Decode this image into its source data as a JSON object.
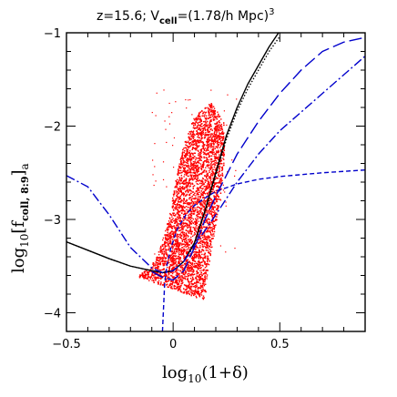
{
  "chart_data": {
    "type": "scatter",
    "title": {
      "z_part": "z=15.6; V",
      "sub": "cell",
      "eq": "=(1.78/h Mpc)",
      "sup": "3"
    },
    "xlabel": {
      "pre": "log",
      "sub": "10",
      "post": "(1+δ)"
    },
    "ylabel": {
      "pre": "log",
      "sub1": "10",
      "mid": "[f",
      "sub2": "coll, 8:9",
      "post": "]",
      "sub3": "a"
    },
    "xlim": [
      -0.5,
      0.9
    ],
    "ylim": [
      -4.2,
      -1.0
    ],
    "xticks": [
      -0.5,
      0,
      0.5
    ],
    "xtick_labels": [
      "−0.5",
      "0",
      "0.5"
    ],
    "yticks": [
      -4,
      -3,
      -2,
      -1
    ],
    "ytick_labels": [
      "−4",
      "−3",
      "−2",
      "−1"
    ],
    "grid": false,
    "colors": {
      "scatter": "#ff0000",
      "black_curves": "#000000",
      "blue_curves": "#0000cc"
    },
    "scatter_cloud": {
      "color": "#ff0000",
      "region_outline": [
        [
          -0.16,
          -3.6
        ],
        [
          -0.1,
          -3.5
        ],
        [
          -0.06,
          -3.3
        ],
        [
          -0.02,
          -3.0
        ],
        [
          0.01,
          -2.6
        ],
        [
          0.05,
          -2.2
        ],
        [
          0.1,
          -1.9
        ],
        [
          0.18,
          -1.75
        ],
        [
          0.24,
          -1.95
        ],
        [
          0.24,
          -2.4
        ],
        [
          0.22,
          -2.8
        ],
        [
          0.19,
          -3.2
        ],
        [
          0.16,
          -3.6
        ],
        [
          0.15,
          -3.87
        ],
        [
          0.0,
          -3.75
        ],
        [
          -0.16,
          -3.62
        ]
      ]
    },
    "series": [
      {
        "style": "solid",
        "color": "#000000",
        "x": [
          -0.5,
          -0.4,
          -0.3,
          -0.2,
          -0.1,
          -0.05,
          0.0,
          0.05,
          0.1,
          0.15,
          0.2,
          0.25,
          0.3,
          0.35,
          0.4,
          0.45,
          0.5
        ],
        "y": [
          -3.24,
          -3.33,
          -3.42,
          -3.5,
          -3.55,
          -3.57,
          -3.55,
          -3.45,
          -3.25,
          -2.9,
          -2.5,
          -2.1,
          -1.8,
          -1.55,
          -1.35,
          -1.15,
          -0.98
        ]
      },
      {
        "style": "dotted",
        "color": "#000000",
        "x": [
          -0.5,
          -0.4,
          -0.3,
          -0.2,
          -0.1,
          -0.05,
          0.0,
          0.05,
          0.1,
          0.15,
          0.2,
          0.25,
          0.3,
          0.35,
          0.4,
          0.45,
          0.5
        ],
        "y": [
          -3.24,
          -3.33,
          -3.42,
          -3.5,
          -3.55,
          -3.57,
          -3.55,
          -3.45,
          -3.26,
          -2.92,
          -2.53,
          -2.14,
          -1.84,
          -1.6,
          -1.4,
          -1.2,
          -1.04
        ]
      },
      {
        "style": "dash-dot",
        "color": "#0000cc",
        "x": [
          -0.5,
          -0.4,
          -0.3,
          -0.2,
          -0.1,
          -0.05,
          0.0,
          0.05,
          0.1,
          0.2,
          0.3,
          0.4,
          0.5,
          0.6,
          0.7,
          0.8,
          0.9
        ],
        "y": [
          -2.53,
          -2.65,
          -2.95,
          -3.3,
          -3.52,
          -3.57,
          -3.55,
          -3.45,
          -3.28,
          -2.95,
          -2.6,
          -2.3,
          -2.05,
          -1.85,
          -1.65,
          -1.45,
          -1.25
        ]
      },
      {
        "style": "long-dash",
        "color": "#0000cc",
        "x": [
          -0.1,
          -0.05,
          0.0,
          0.05,
          0.1,
          0.15,
          0.2,
          0.3,
          0.4,
          0.5,
          0.6,
          0.7,
          0.8,
          0.9
        ],
        "y": [
          -3.56,
          -3.62,
          -3.65,
          -3.55,
          -3.3,
          -3.0,
          -2.75,
          -2.3,
          -1.95,
          -1.65,
          -1.4,
          -1.2,
          -1.1,
          -1.05
        ]
      },
      {
        "style": "short-dash",
        "color": "#0000cc",
        "x": [
          -0.05,
          -0.045,
          -0.04,
          -0.03,
          -0.01,
          0.02,
          0.06,
          0.1,
          0.15,
          0.2,
          0.3,
          0.4,
          0.5,
          0.7,
          0.9
        ],
        "y": [
          -4.2,
          -3.95,
          -3.7,
          -3.5,
          -3.3,
          -3.1,
          -2.95,
          -2.85,
          -2.77,
          -2.7,
          -2.62,
          -2.57,
          -2.54,
          -2.5,
          -2.47
        ]
      }
    ]
  }
}
